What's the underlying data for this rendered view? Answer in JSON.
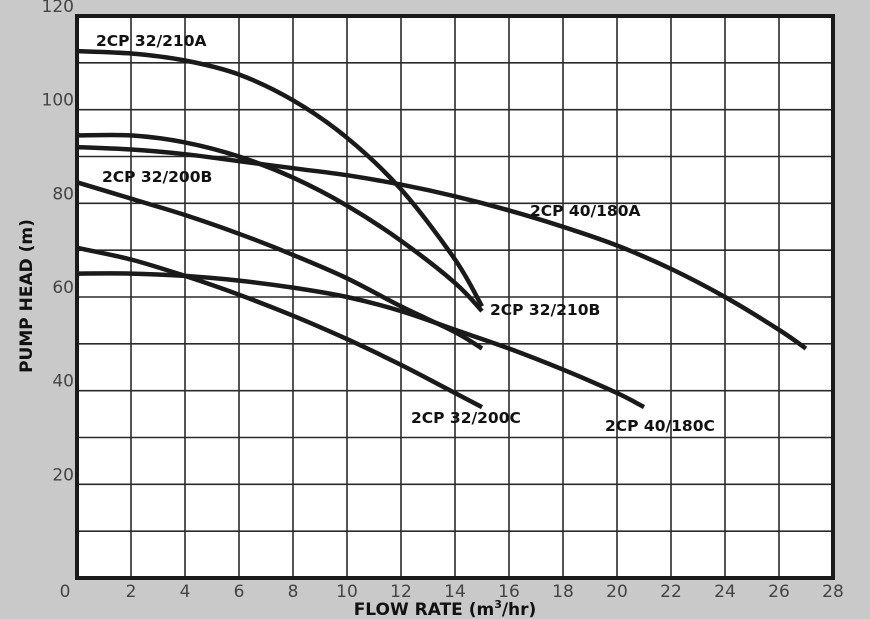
{
  "chart_data": {
    "type": "line",
    "xlabel": "FLOW RATE (m",
    "xlabel_sup": "3",
    "xlabel_end": "/hr)",
    "ylabel": "PUMP HEAD (m)",
    "xlim": [
      0,
      28
    ],
    "ylim": [
      0,
      120
    ],
    "x_ticks": [
      0,
      2,
      4,
      6,
      8,
      10,
      12,
      14,
      16,
      18,
      20,
      22,
      24,
      26,
      28
    ],
    "y_ticks": [
      20,
      40,
      60,
      80,
      100,
      120
    ],
    "y_tick_labels": [
      "20",
      "40",
      "60",
      "80",
      "100",
      "120"
    ],
    "grid": true,
    "line_color": "#1a1a1a",
    "background": "#ffffff",
    "series": [
      {
        "name": "2CP 32/210A",
        "x": [
          0,
          2,
          4,
          6,
          8,
          10,
          12,
          14,
          15
        ],
        "y": [
          112.5,
          112,
          110.5,
          107.5,
          102,
          94,
          83,
          68,
          58
        ]
      },
      {
        "name": "2CP 40/180A",
        "x": [
          0,
          2,
          4,
          6,
          8,
          10,
          12,
          14,
          16,
          18,
          20,
          22,
          24,
          26,
          27
        ],
        "y": [
          92,
          91.5,
          90.5,
          89,
          87.5,
          86,
          84,
          81.5,
          78.5,
          75,
          71,
          66,
          60,
          53,
          49
        ]
      },
      {
        "name": "2CP 32/210B",
        "x": [
          0,
          2,
          4,
          6,
          8,
          10,
          12,
          14,
          15
        ],
        "y": [
          94.5,
          94.5,
          93,
          90,
          85.5,
          79.5,
          72,
          63,
          57
        ]
      },
      {
        "name": "2CP 32/200B",
        "x": [
          0,
          2,
          4,
          6,
          8,
          10,
          12,
          14,
          15
        ],
        "y": [
          84.5,
          81,
          77.5,
          73.5,
          69,
          64,
          58,
          52.5,
          49
        ]
      },
      {
        "name": "2CP 40/180C",
        "x": [
          0,
          2,
          4,
          6,
          8,
          10,
          12,
          14,
          16,
          18,
          20,
          21
        ],
        "y": [
          65,
          65,
          64.5,
          63.5,
          62,
          60,
          57,
          53,
          49,
          44.5,
          39.5,
          36.5
        ]
      },
      {
        "name": "2CP 32/200C",
        "x": [
          0,
          2,
          4,
          6,
          8,
          10,
          12,
          14,
          15
        ],
        "y": [
          70.5,
          68,
          64.5,
          60.5,
          56,
          51,
          45.5,
          39.5,
          36.5
        ]
      }
    ]
  }
}
